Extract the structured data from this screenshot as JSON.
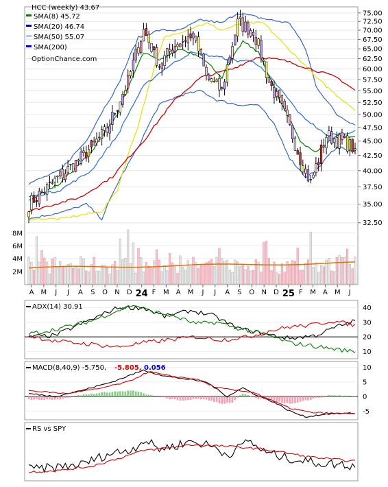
{
  "chart_data": [
    {
      "type": "candlestick",
      "title": "HCC (weekly) 43.67",
      "watermark": "OptionChance.com",
      "y_scale": "log",
      "ylim": [
        31,
        76
      ],
      "price_ticks": [
        32.5,
        35,
        37.5,
        40,
        42.5,
        45,
        47.5,
        50,
        52.5,
        55,
        57.5,
        60,
        62.5,
        65,
        67.5,
        70,
        72.5,
        75
      ],
      "price_tick_labels": [
        "32.50",
        "35.00",
        "37.50",
        "40.00",
        "42.50",
        "45.00",
        "47.50",
        "50.00",
        "52.50",
        "55.00",
        "57.50",
        "60.00",
        "62.50",
        "65.00",
        "67.50",
        "70.00",
        "72.50",
        "75.00"
      ],
      "legend": [
        {
          "label": "SMA(8) 45.72",
          "color": "#008000"
        },
        {
          "label": "SMA(20) 46.74",
          "color": "#0000aa"
        },
        {
          "label": "SMA(50) 55.07",
          "color": "#99ccff"
        },
        {
          "label": "SMA(200)",
          "color": "#0000ff"
        }
      ],
      "x_labels": [
        "A",
        "M",
        "J",
        "J",
        "A",
        "S",
        "O",
        "N",
        "D",
        "24",
        "F",
        "M",
        "A",
        "M",
        "J",
        "J",
        "A",
        "S",
        "O",
        "N",
        "D",
        "25",
        "F",
        "M",
        "A",
        "M",
        "J"
      ],
      "volume_ticks": [
        2,
        4,
        6,
        8
      ],
      "volume_tick_labels": [
        "2M",
        "4M",
        "6M",
        "8M"
      ],
      "volume_ylim": [
        0,
        9
      ],
      "price_key_points": [
        [
          0,
          35
        ],
        [
          9,
          38
        ],
        [
          20,
          42
        ],
        [
          30,
          47
        ],
        [
          38,
          57
        ],
        [
          44,
          70
        ],
        [
          50,
          61
        ],
        [
          56,
          66
        ],
        [
          63,
          69
        ],
        [
          68,
          58
        ],
        [
          74,
          55
        ],
        [
          80,
          72
        ],
        [
          86,
          70
        ],
        [
          92,
          57
        ],
        [
          98,
          50
        ],
        [
          104,
          42
        ],
        [
          108,
          38
        ],
        [
          114,
          46
        ],
        [
          122,
          44.5
        ],
        [
          125,
          43.67
        ]
      ],
      "sma8_key_points": [
        [
          0,
          35.5
        ],
        [
          12,
          38
        ],
        [
          24,
          43
        ],
        [
          34,
          50
        ],
        [
          44,
          64
        ],
        [
          50,
          62
        ],
        [
          58,
          65
        ],
        [
          66,
          63
        ],
        [
          74,
          58
        ],
        [
          82,
          67
        ],
        [
          88,
          64
        ],
        [
          96,
          53
        ],
        [
          104,
          45
        ],
        [
          110,
          43
        ],
        [
          118,
          46
        ],
        [
          125,
          45.72
        ]
      ],
      "sma20_key_points": [
        [
          0,
          36
        ],
        [
          12,
          37
        ],
        [
          24,
          40
        ],
        [
          34,
          46
        ],
        [
          44,
          56
        ],
        [
          52,
          60
        ],
        [
          62,
          64
        ],
        [
          72,
          63
        ],
        [
          80,
          62
        ],
        [
          86,
          62
        ],
        [
          94,
          57
        ],
        [
          104,
          50
        ],
        [
          114,
          46
        ],
        [
          125,
          46.74
        ]
      ],
      "sma50_key_points": [
        [
          0,
          34
        ],
        [
          20,
          36
        ],
        [
          32,
          39
        ],
        [
          44,
          45
        ],
        [
          56,
          53
        ],
        [
          66,
          58
        ],
        [
          78,
          60
        ],
        [
          88,
          63
        ],
        [
          98,
          62
        ],
        [
          108,
          60
        ],
        [
          118,
          58
        ],
        [
          125,
          55.07
        ]
      ],
      "bb_upper_key_points": [
        [
          0,
          38
        ],
        [
          12,
          40
        ],
        [
          22,
          45
        ],
        [
          34,
          56
        ],
        [
          42,
          68
        ],
        [
          50,
          70
        ],
        [
          58,
          70
        ],
        [
          66,
          73
        ],
        [
          74,
          72
        ],
        [
          80,
          75
        ],
        [
          86,
          74
        ],
        [
          92,
          73
        ],
        [
          100,
          72
        ],
        [
          106,
          65
        ],
        [
          110,
          56
        ],
        [
          118,
          50
        ],
        [
          125,
          48
        ]
      ],
      "bb_lower_key_points": [
        [
          0,
          33
        ],
        [
          14,
          34
        ],
        [
          22,
          35
        ],
        [
          28,
          33
        ],
        [
          34,
          38
        ],
        [
          42,
          44
        ],
        [
          50,
          52
        ],
        [
          58,
          54
        ],
        [
          66,
          55
        ],
        [
          72,
          53
        ],
        [
          80,
          52
        ],
        [
          88,
          52
        ],
        [
          94,
          48
        ],
        [
          100,
          42
        ],
        [
          106,
          39
        ],
        [
          110,
          40
        ],
        [
          118,
          44
        ],
        [
          125,
          43
        ]
      ],
      "yellow_key_points": [
        [
          0,
          33
        ],
        [
          12,
          33
        ],
        [
          20,
          33.5
        ],
        [
          28,
          34
        ],
        [
          34,
          37
        ],
        [
          42,
          48
        ],
        [
          52,
          68
        ],
        [
          60,
          70
        ],
        [
          68,
          72
        ],
        [
          74,
          70
        ],
        [
          82,
          72
        ],
        [
          90,
          72
        ],
        [
          98,
          66
        ],
        [
          104,
          62
        ],
        [
          110,
          58
        ],
        [
          118,
          54
        ],
        [
          125,
          51
        ]
      ]
    },
    {
      "type": "line",
      "title": "ADX(14) 30.91",
      "ylim": [
        5,
        45
      ],
      "ticks": [
        10,
        20,
        30,
        40
      ],
      "tick_labels": [
        "10",
        "20",
        "30",
        "40"
      ],
      "series": [
        {
          "color": "#000000",
          "key_points": [
            [
              0,
              20
            ],
            [
              10,
              21
            ],
            [
              24,
              32
            ],
            [
              34,
              40
            ],
            [
              44,
              40
            ],
            [
              52,
              34
            ],
            [
              62,
              38
            ],
            [
              70,
              35
            ],
            [
              80,
              26
            ],
            [
              90,
              22
            ],
            [
              100,
              19
            ],
            [
              110,
              21
            ],
            [
              118,
              27
            ],
            [
              125,
              30.91
            ]
          ]
        },
        {
          "color": "#008000",
          "key_points": [
            [
              0,
              22
            ],
            [
              10,
              25
            ],
            [
              24,
              31
            ],
            [
              34,
              38
            ],
            [
              40,
              42
            ],
            [
              46,
              38
            ],
            [
              56,
              34
            ],
            [
              64,
              29
            ],
            [
              72,
              30
            ],
            [
              80,
              26
            ],
            [
              90,
              22
            ],
            [
              100,
              16
            ],
            [
              112,
              13
            ],
            [
              120,
              11
            ],
            [
              125,
              10
            ]
          ]
        },
        {
          "color": "#dd0000",
          "key_points": [
            [
              0,
              21
            ],
            [
              10,
              17
            ],
            [
              24,
              15
            ],
            [
              34,
              13
            ],
            [
              44,
              16
            ],
            [
              54,
              18
            ],
            [
              64,
              20
            ],
            [
              74,
              18
            ],
            [
              84,
              20
            ],
            [
              92,
              24
            ],
            [
              100,
              27
            ],
            [
              108,
              28
            ],
            [
              116,
              31
            ],
            [
              125,
              28
            ]
          ]
        }
      ]
    },
    {
      "type": "line",
      "title": "MACD(8,40,9) -5.750,",
      "value_red": "-5.805,",
      "value_blue": "0.056",
      "ylim": [
        -8,
        12
      ],
      "ticks": [
        -5,
        0,
        5,
        10
      ],
      "tick_labels": [
        "-5",
        "0",
        "5",
        "10"
      ],
      "series": [
        {
          "color": "#000000",
          "key_points": [
            [
              0,
              1
            ],
            [
              10,
              0
            ],
            [
              20,
              2
            ],
            [
              32,
              5
            ],
            [
              44,
              9
            ],
            [
              52,
              7
            ],
            [
              60,
              6
            ],
            [
              68,
              5
            ],
            [
              76,
              0
            ],
            [
              82,
              3
            ],
            [
              86,
              1
            ],
            [
              94,
              -2
            ],
            [
              100,
              -5
            ],
            [
              106,
              -7
            ],
            [
              114,
              -6
            ],
            [
              125,
              -5.75
            ]
          ]
        },
        {
          "color": "#dd0000",
          "key_points": [
            [
              0,
              2
            ],
            [
              14,
              1
            ],
            [
              26,
              2.5
            ],
            [
              38,
              5
            ],
            [
              46,
              8.5
            ],
            [
              54,
              7
            ],
            [
              64,
              6
            ],
            [
              72,
              3
            ],
            [
              80,
              2
            ],
            [
              86,
              1.5
            ],
            [
              92,
              -1
            ],
            [
              100,
              -4
            ],
            [
              108,
              -5.5
            ],
            [
              118,
              -5.8
            ],
            [
              125,
              -5.805
            ]
          ]
        }
      ],
      "histogram_key_points": [
        [
          0,
          -1
        ],
        [
          12,
          -1
        ],
        [
          20,
          0.5
        ],
        [
          30,
          1.5
        ],
        [
          40,
          2
        ],
        [
          46,
          0.5
        ],
        [
          52,
          -0.5
        ],
        [
          58,
          -1.5
        ],
        [
          62,
          -1
        ],
        [
          68,
          -1
        ],
        [
          74,
          -2.5
        ],
        [
          78,
          -2
        ],
        [
          82,
          1
        ],
        [
          86,
          -0.5
        ],
        [
          94,
          -1.5
        ],
        [
          100,
          -2.5
        ],
        [
          108,
          -1
        ],
        [
          116,
          0.5
        ],
        [
          125,
          0.056
        ]
      ]
    },
    {
      "type": "line",
      "title": "RS vs SPY",
      "series": [
        {
          "color": "#000000",
          "key_points": [
            [
              0,
              20
            ],
            [
              8,
              22
            ],
            [
              20,
              28
            ],
            [
              30,
              45
            ],
            [
              40,
              55
            ],
            [
              44,
              70
            ],
            [
              50,
              55
            ],
            [
              56,
              60
            ],
            [
              62,
              68
            ],
            [
              70,
              60
            ],
            [
              76,
              45
            ],
            [
              80,
              55
            ],
            [
              84,
              70
            ],
            [
              90,
              50
            ],
            [
              96,
              42
            ],
            [
              104,
              35
            ],
            [
              112,
              30
            ],
            [
              120,
              28
            ],
            [
              125,
              25
            ]
          ]
        },
        {
          "color": "#dd0000",
          "key_points": [
            [
              0,
              15
            ],
            [
              12,
              18
            ],
            [
              24,
              25
            ],
            [
              34,
              38
            ],
            [
              44,
              52
            ],
            [
              54,
              57
            ],
            [
              62,
              62
            ],
            [
              72,
              60
            ],
            [
              80,
              58
            ],
            [
              88,
              55
            ],
            [
              96,
              50
            ],
            [
              106,
              42
            ],
            [
              116,
              37
            ],
            [
              125,
              34
            ]
          ]
        }
      ]
    }
  ]
}
